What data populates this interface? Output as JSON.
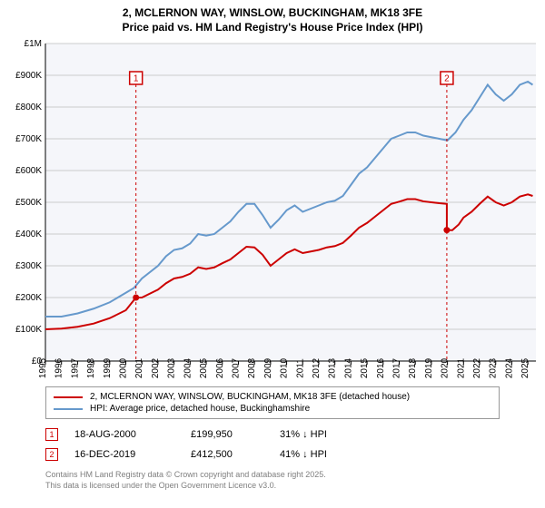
{
  "title_line1": "2, MCLERNON WAY, WINSLOW, BUCKINGHAM, MK18 3FE",
  "title_line2": "Price paid vs. HM Land Registry's House Price Index (HPI)",
  "chart": {
    "type": "line",
    "background_color": "#f5f6fa",
    "grid_color": "#cccccc",
    "axis_color": "#000000",
    "label_fontsize": 10,
    "x_years": [
      1995,
      1996,
      1997,
      1998,
      1999,
      2000,
      2001,
      2002,
      2003,
      2004,
      2005,
      2006,
      2007,
      2008,
      2009,
      2010,
      2011,
      2012,
      2013,
      2014,
      2015,
      2016,
      2017,
      2018,
      2019,
      2020,
      2021,
      2022,
      2023,
      2024,
      2025
    ],
    "xlim": [
      1995,
      2025.5
    ],
    "y_ticks": [
      0,
      100000,
      200000,
      300000,
      400000,
      500000,
      600000,
      700000,
      800000,
      900000,
      1000000
    ],
    "y_labels": [
      "£0",
      "£100K",
      "£200K",
      "£300K",
      "£400K",
      "£500K",
      "£600K",
      "£700K",
      "£800K",
      "£900K",
      "£1M"
    ],
    "ylim": [
      0,
      1000000
    ],
    "series": {
      "hpi": {
        "color": "#6699cc",
        "line_width": 2,
        "data": [
          [
            1995,
            140000
          ],
          [
            1996,
            140000
          ],
          [
            1997,
            150000
          ],
          [
            1998,
            165000
          ],
          [
            1999,
            185000
          ],
          [
            2000,
            215000
          ],
          [
            2000.5,
            230000
          ],
          [
            2001,
            260000
          ],
          [
            2002,
            300000
          ],
          [
            2002.5,
            330000
          ],
          [
            2003,
            350000
          ],
          [
            2003.5,
            355000
          ],
          [
            2004,
            370000
          ],
          [
            2004.5,
            400000
          ],
          [
            2005,
            395000
          ],
          [
            2005.5,
            400000
          ],
          [
            2006,
            420000
          ],
          [
            2006.5,
            440000
          ],
          [
            2007,
            470000
          ],
          [
            2007.5,
            495000
          ],
          [
            2008,
            495000
          ],
          [
            2008.5,
            460000
          ],
          [
            2009,
            420000
          ],
          [
            2009.5,
            445000
          ],
          [
            2010,
            475000
          ],
          [
            2010.5,
            490000
          ],
          [
            2011,
            470000
          ],
          [
            2011.5,
            480000
          ],
          [
            2012,
            490000
          ],
          [
            2012.5,
            500000
          ],
          [
            2013,
            505000
          ],
          [
            2013.5,
            520000
          ],
          [
            2014,
            555000
          ],
          [
            2014.5,
            590000
          ],
          [
            2015,
            610000
          ],
          [
            2015.5,
            640000
          ],
          [
            2016,
            670000
          ],
          [
            2016.5,
            700000
          ],
          [
            2017,
            710000
          ],
          [
            2017.5,
            720000
          ],
          [
            2018,
            720000
          ],
          [
            2018.5,
            710000
          ],
          [
            2019,
            705000
          ],
          [
            2019.5,
            700000
          ],
          [
            2020,
            695000
          ],
          [
            2020.5,
            720000
          ],
          [
            2021,
            760000
          ],
          [
            2021.5,
            790000
          ],
          [
            2022,
            830000
          ],
          [
            2022.5,
            870000
          ],
          [
            2023,
            840000
          ],
          [
            2023.5,
            820000
          ],
          [
            2024,
            840000
          ],
          [
            2024.5,
            870000
          ],
          [
            2025,
            880000
          ],
          [
            2025.3,
            870000
          ]
        ]
      },
      "property": {
        "color": "#cc0000",
        "line_width": 2,
        "data": [
          [
            1995,
            100000
          ],
          [
            1996,
            102000
          ],
          [
            1997,
            108000
          ],
          [
            1998,
            118000
          ],
          [
            1999,
            135000
          ],
          [
            2000,
            160000
          ],
          [
            2000.63,
            199950
          ],
          [
            2001,
            200000
          ],
          [
            2002,
            225000
          ],
          [
            2002.5,
            245000
          ],
          [
            2003,
            260000
          ],
          [
            2003.5,
            265000
          ],
          [
            2004,
            275000
          ],
          [
            2004.5,
            295000
          ],
          [
            2005,
            290000
          ],
          [
            2005.5,
            295000
          ],
          [
            2006,
            308000
          ],
          [
            2006.5,
            320000
          ],
          [
            2007,
            340000
          ],
          [
            2007.5,
            360000
          ],
          [
            2008,
            358000
          ],
          [
            2008.5,
            335000
          ],
          [
            2009,
            300000
          ],
          [
            2009.5,
            320000
          ],
          [
            2010,
            340000
          ],
          [
            2010.5,
            352000
          ],
          [
            2011,
            340000
          ],
          [
            2011.5,
            345000
          ],
          [
            2012,
            350000
          ],
          [
            2012.5,
            358000
          ],
          [
            2013,
            362000
          ],
          [
            2013.5,
            372000
          ],
          [
            2014,
            395000
          ],
          [
            2014.5,
            420000
          ],
          [
            2015,
            435000
          ],
          [
            2015.5,
            455000
          ],
          [
            2016,
            475000
          ],
          [
            2016.5,
            495000
          ],
          [
            2017,
            502000
          ],
          [
            2017.5,
            510000
          ],
          [
            2018,
            510000
          ],
          [
            2018.5,
            503000
          ],
          [
            2019,
            500000
          ],
          [
            2019.5,
            497000
          ],
          [
            2019.96,
            495000
          ],
          [
            2019.961,
            412500
          ],
          [
            2020.3,
            412000
          ],
          [
            2020.7,
            430000
          ],
          [
            2021,
            452000
          ],
          [
            2021.5,
            470000
          ],
          [
            2022,
            495000
          ],
          [
            2022.5,
            518000
          ],
          [
            2023,
            500000
          ],
          [
            2023.5,
            490000
          ],
          [
            2024,
            500000
          ],
          [
            2024.5,
            518000
          ],
          [
            2025,
            525000
          ],
          [
            2025.3,
            520000
          ]
        ]
      }
    },
    "markers": [
      {
        "n": "1",
        "x": 2000.63,
        "y": 199950,
        "color": "#cc0000",
        "line_top_y": 900000,
        "dot": true
      },
      {
        "n": "2",
        "x": 2019.96,
        "y": 412500,
        "color": "#cc0000",
        "line_top_y": 900000,
        "dot": true
      }
    ]
  },
  "legend": {
    "border_color": "#999999",
    "rows": [
      {
        "color": "#cc0000",
        "label": "2, MCLERNON WAY, WINSLOW, BUCKINGHAM, MK18 3FE (detached house)"
      },
      {
        "color": "#6699cc",
        "label": "HPI: Average price, detached house, Buckinghamshire"
      }
    ]
  },
  "events": [
    {
      "n": "1",
      "color": "#cc0000",
      "date": "18-AUG-2000",
      "price": "£199,950",
      "delta": "31% ↓ HPI"
    },
    {
      "n": "2",
      "color": "#cc0000",
      "date": "16-DEC-2019",
      "price": "£412,500",
      "delta": "41% ↓ HPI"
    }
  ],
  "footer_line1": "Contains HM Land Registry data © Crown copyright and database right 2025.",
  "footer_line2": "This data is licensed under the Open Government Licence v3.0."
}
